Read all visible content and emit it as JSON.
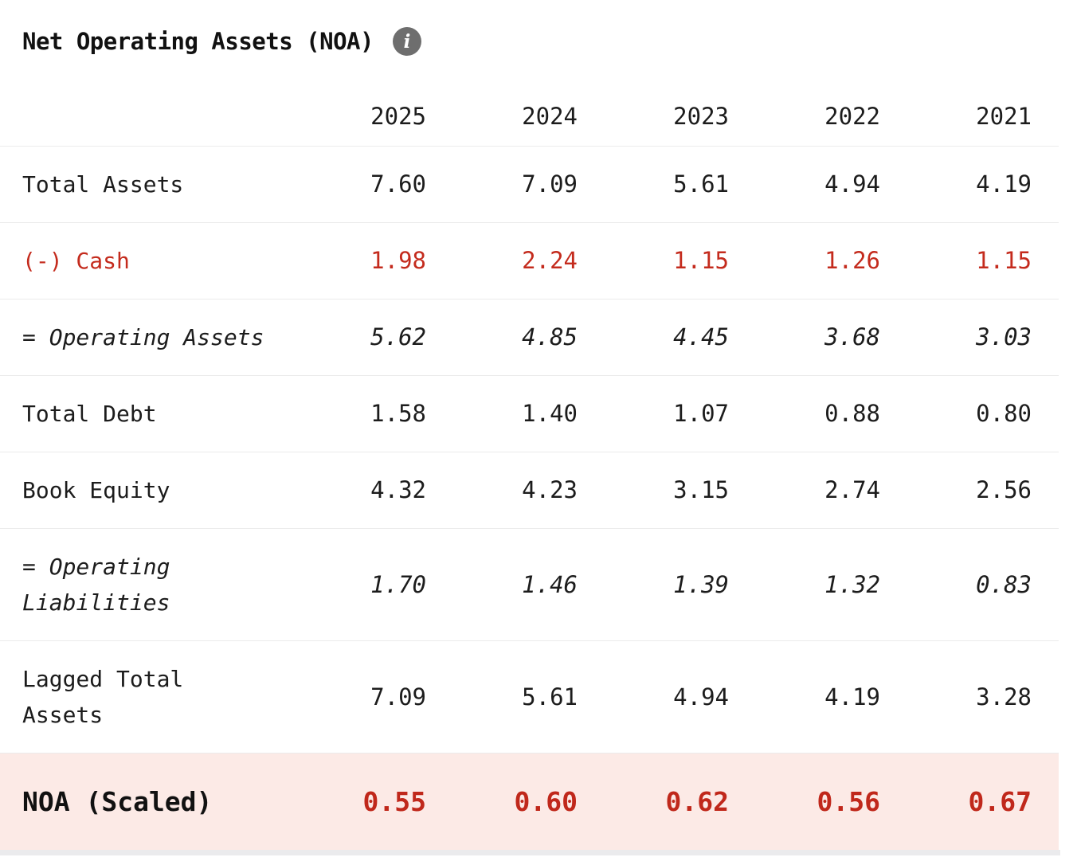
{
  "title": "Net Operating Assets (NOA)",
  "info_icon": {
    "name": "info-icon",
    "glyph": "i"
  },
  "colors": {
    "accent_red": "#c42b1d",
    "highlight_row_bg": "#fceae6",
    "row_border": "#ebebeb",
    "info_icon_bg": "#6e6e6e",
    "text": "#1c1c1c"
  },
  "table": {
    "columns": [
      "2025",
      "2024",
      "2023",
      "2022",
      "2021"
    ],
    "rows": [
      {
        "label": "Total Assets",
        "style": "normal",
        "values": [
          "7.60",
          "7.09",
          "5.61",
          "4.94",
          "4.19"
        ]
      },
      {
        "label": "(-) Cash",
        "style": "red",
        "values": [
          "1.98",
          "2.24",
          "1.15",
          "1.26",
          "1.15"
        ]
      },
      {
        "label": "= Operating Assets",
        "style": "italic",
        "values": [
          "5.62",
          "4.85",
          "4.45",
          "3.68",
          "3.03"
        ]
      },
      {
        "label": "Total Debt",
        "style": "normal",
        "values": [
          "1.58",
          "1.40",
          "1.07",
          "0.88",
          "0.80"
        ]
      },
      {
        "label": "Book Equity",
        "style": "normal",
        "values": [
          "4.32",
          "4.23",
          "3.15",
          "2.74",
          "2.56"
        ]
      },
      {
        "label": "= Operating Liabilities",
        "style": "italic",
        "values": [
          "1.70",
          "1.46",
          "1.39",
          "1.32",
          "0.83"
        ]
      },
      {
        "label": "Lagged Total Assets",
        "style": "normal",
        "values": [
          "7.09",
          "5.61",
          "4.94",
          "4.19",
          "3.28"
        ]
      },
      {
        "label": "NOA (Scaled)",
        "style": "highlight",
        "values": [
          "0.55",
          "0.60",
          "0.62",
          "0.56",
          "0.67"
        ]
      }
    ]
  },
  "chart_data": {
    "type": "table",
    "title": "Net Operating Assets (NOA)",
    "categories": [
      "2025",
      "2024",
      "2023",
      "2022",
      "2021"
    ],
    "series": [
      {
        "name": "Total Assets",
        "values": [
          7.6,
          7.09,
          5.61,
          4.94,
          4.19
        ]
      },
      {
        "name": "(-) Cash",
        "values": [
          1.98,
          2.24,
          1.15,
          1.26,
          1.15
        ]
      },
      {
        "name": "= Operating Assets",
        "values": [
          5.62,
          4.85,
          4.45,
          3.68,
          3.03
        ]
      },
      {
        "name": "Total Debt",
        "values": [
          1.58,
          1.4,
          1.07,
          0.88,
          0.8
        ]
      },
      {
        "name": "Book Equity",
        "values": [
          4.32,
          4.23,
          3.15,
          2.74,
          2.56
        ]
      },
      {
        "name": "= Operating Liabilities",
        "values": [
          1.7,
          1.46,
          1.39,
          1.32,
          0.83
        ]
      },
      {
        "name": "Lagged Total Assets",
        "values": [
          7.09,
          5.61,
          4.94,
          4.19,
          3.28
        ]
      },
      {
        "name": "NOA (Scaled)",
        "values": [
          0.55,
          0.6,
          0.62,
          0.56,
          0.67
        ]
      }
    ]
  }
}
